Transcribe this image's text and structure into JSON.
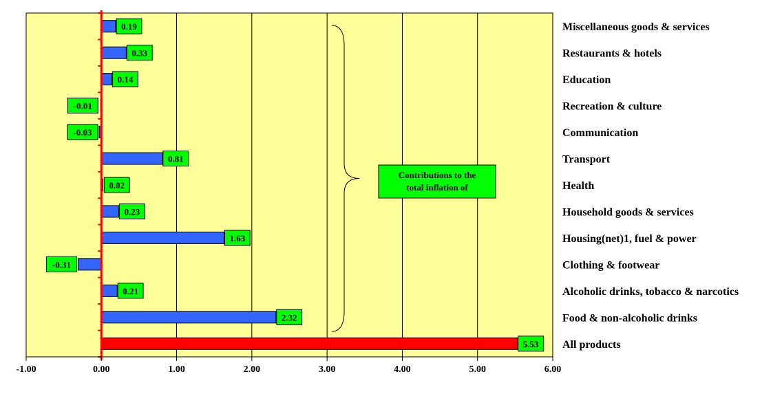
{
  "chart_data": {
    "type": "bar",
    "orientation": "horizontal",
    "categories": [
      "Miscellaneous goods & services",
      "Restaurants & hotels",
      "Education",
      "Recreation & culture",
      "Communication",
      "Transport",
      "Health",
      "Household goods & services",
      "Housing(net)1, fuel & power",
      "Clothing & footwear",
      "Alcoholic drinks, tobacco & narcotics",
      "Food & non-alcoholic drinks",
      "All products"
    ],
    "values": [
      0.19,
      0.33,
      0.14,
      -0.01,
      -0.03,
      0.81,
      0.02,
      0.23,
      1.63,
      -0.31,
      0.21,
      2.32,
      5.53
    ],
    "data_labels": [
      "0.19",
      "0.33",
      "0.14",
      "-0.01",
      "-0.03",
      "0.81",
      "0.02",
      "0.23",
      "1.63",
      "-0.31",
      "0.21",
      "2.32",
      "5.53"
    ],
    "xlim": [
      -1,
      6
    ],
    "x_ticks": [
      "-1.00",
      "0.00",
      "1.00",
      "2.00",
      "3.00",
      "4.00",
      "5.00",
      "6.00"
    ],
    "grid": "vertical",
    "annotation": {
      "line1": "Contributions to the",
      "line2": "total inflation of"
    },
    "colors": {
      "plot_bg": "#ffff99",
      "bar": "#3366ff",
      "total_bar": "#ff0000",
      "label_box": "#00ff00",
      "zero_axis": "#ff0000"
    }
  }
}
